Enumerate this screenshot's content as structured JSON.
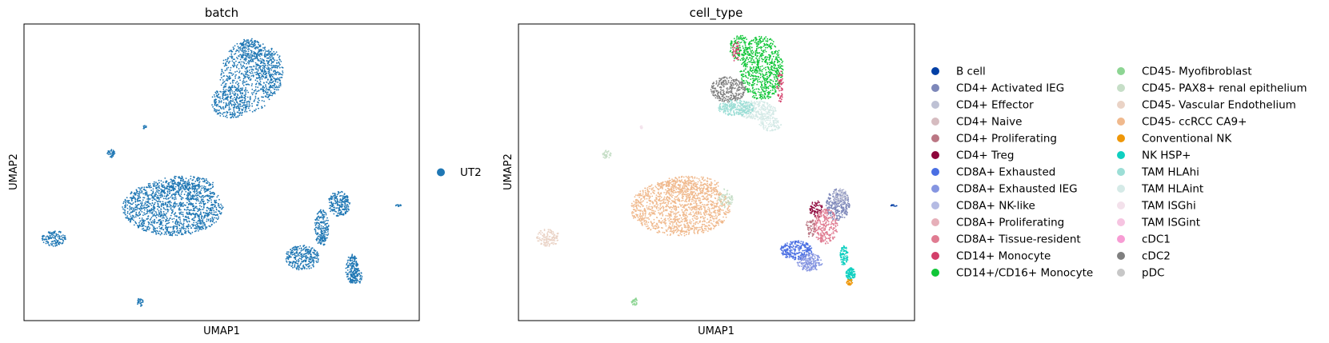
{
  "chart_data": [
    {
      "type": "scatter",
      "title": "batch",
      "xlabel": "UMAP1",
      "ylabel": "UMAP2",
      "grid": false,
      "legend": "right",
      "series": [
        {
          "name": "UT2",
          "color": "#1f77b4"
        }
      ]
    },
    {
      "type": "scatter",
      "title": "cell_type",
      "xlabel": "UMAP1",
      "ylabel": "UMAP2",
      "grid": false,
      "legend": "right",
      "series": [
        {
          "name": "B cell",
          "color": "#023fa5"
        },
        {
          "name": "CD4+ Activated IEG",
          "color": "#7d87b9"
        },
        {
          "name": "CD4+ Effector",
          "color": "#bec1d4"
        },
        {
          "name": "CD4+ Naive",
          "color": "#d6bcc0"
        },
        {
          "name": "CD4+ Proliferating",
          "color": "#bb7784"
        },
        {
          "name": "CD4+ Treg",
          "color": "#8e063b"
        },
        {
          "name": "CD8A+ Exhausted",
          "color": "#4a6fe3"
        },
        {
          "name": "CD8A+ Exhausted IEG",
          "color": "#8595e1"
        },
        {
          "name": "CD8A+ NK-like",
          "color": "#b5bbe3"
        },
        {
          "name": "CD8A+ Proliferating",
          "color": "#e6afb9"
        },
        {
          "name": "CD8A+ Tissue-resident",
          "color": "#e07b91"
        },
        {
          "name": "CD14+ Monocyte",
          "color": "#d33f6a"
        },
        {
          "name": "CD14+/CD16+ Monocyte",
          "color": "#11c638"
        },
        {
          "name": "CD45- Myofibroblast",
          "color": "#8dd593"
        },
        {
          "name": "CD45- PAX8+ renal epithelium",
          "color": "#c6dec7"
        },
        {
          "name": "CD45- Vascular Endothelium",
          "color": "#ead3c6"
        },
        {
          "name": "CD45- ccRCC CA9+",
          "color": "#f0b98d"
        },
        {
          "name": "Conventional NK",
          "color": "#ef9708"
        },
        {
          "name": "NK HSP+",
          "color": "#0fcfc0"
        },
        {
          "name": "TAM HLAhi",
          "color": "#9cded6"
        },
        {
          "name": "TAM HLAint",
          "color": "#d5eae7"
        },
        {
          "name": "TAM ISGhi",
          "color": "#f3e1eb"
        },
        {
          "name": "TAM ISGint",
          "color": "#f6c4e1"
        },
        {
          "name": "cDC1",
          "color": "#f79cd4"
        },
        {
          "name": "cDC2",
          "color": "#7f7f7f"
        },
        {
          "name": "pDC",
          "color": "#c7c7c7"
        }
      ]
    }
  ]
}
